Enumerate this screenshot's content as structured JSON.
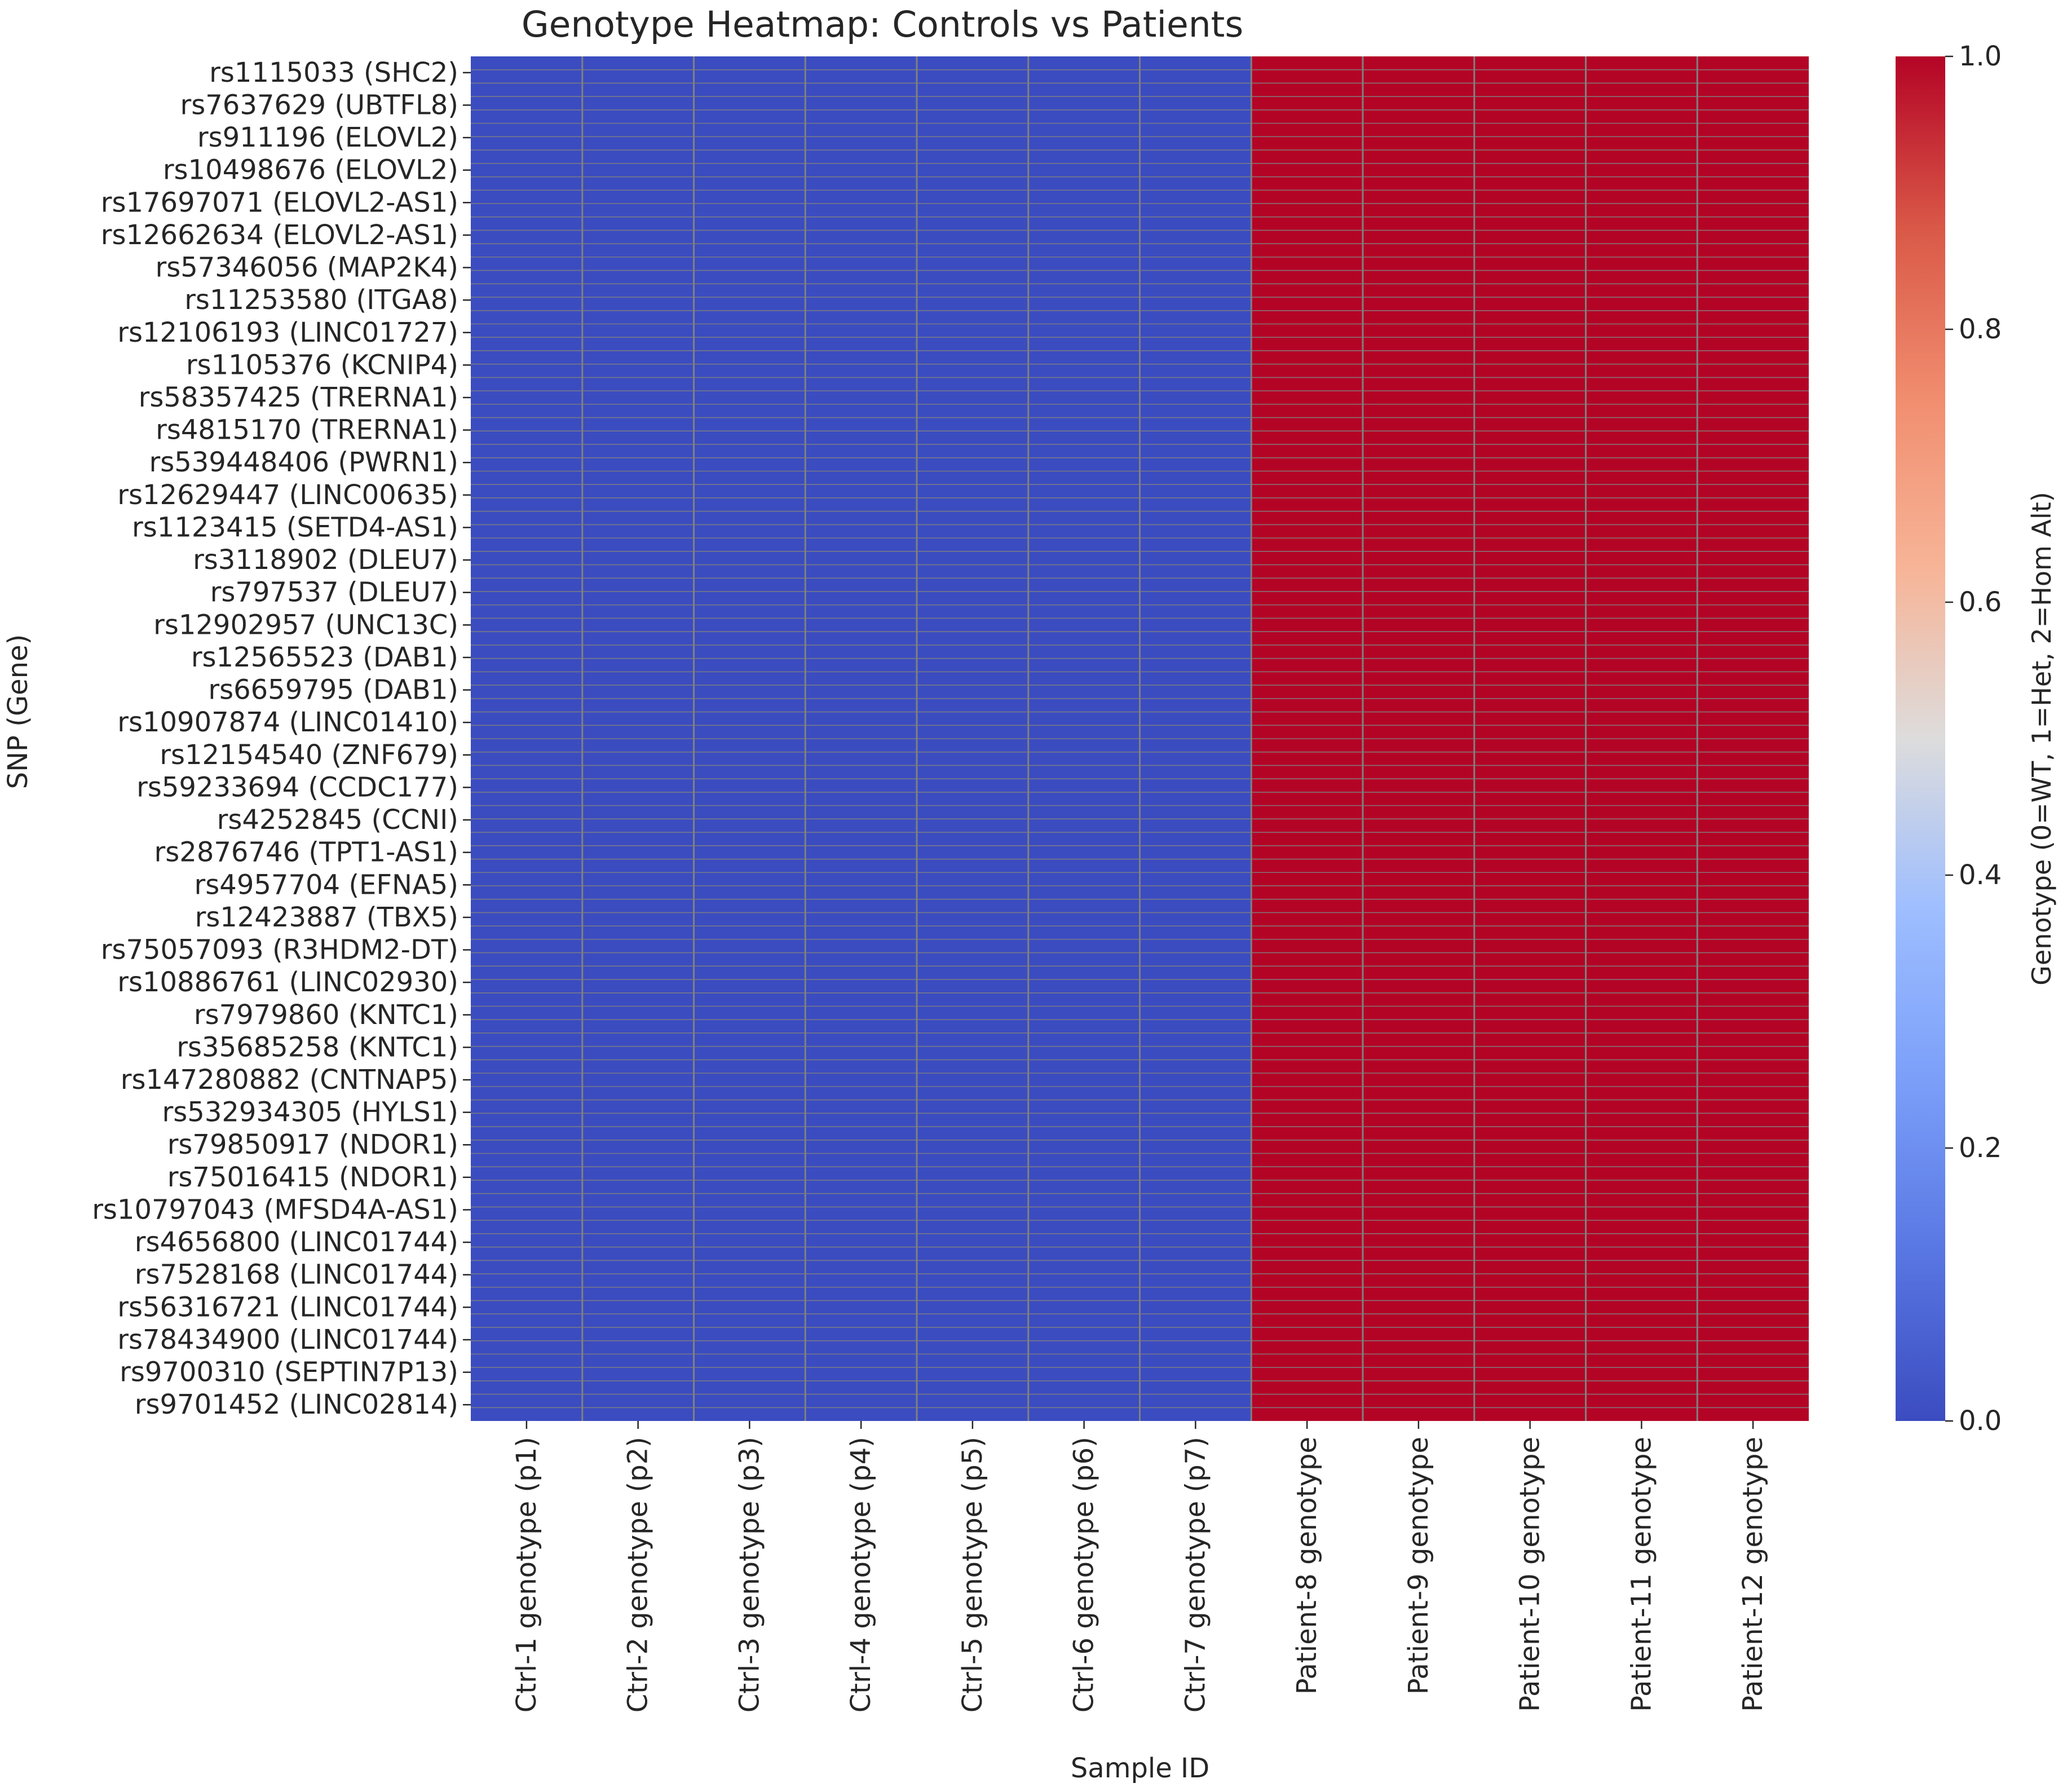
{
  "chart_data": {
    "type": "heatmap",
    "title": "Genotype Heatmap: Controls vs Patients",
    "xlabel": "Sample ID",
    "ylabel": "SNP (Gene)",
    "columns": [
      "Ctrl-1 genotype (p1)",
      "Ctrl-2 genotype (p2)",
      "Ctrl-3 genotype (p3)",
      "Ctrl-4 genotype (p4)",
      "Ctrl-5 genotype (p5)",
      "Ctrl-6 genotype (p6)",
      "Ctrl-7 genotype (p7)",
      "Patient-8 genotype",
      "Patient-9 genotype",
      "Patient-10 genotype",
      "Patient-11 genotype",
      "Patient-12 genotype"
    ],
    "row_labels": [
      "rs1115033 (SHC2)",
      "rs7637629 (UBTFL8)",
      "rs911196 (ELOVL2)",
      "rs10498676 (ELOVL2)",
      "rs17697071 (ELOVL2-AS1)",
      "rs12662634 (ELOVL2-AS1)",
      "rs57346056 (MAP2K4)",
      "rs11253580 (ITGA8)",
      "rs12106193 (LINC01727)",
      "rs1105376 (KCNIP4)",
      "rs58357425 (TRERNA1)",
      "rs4815170 (TRERNA1)",
      "rs539448406 (PWRN1)",
      "rs12629447 (LINC00635)",
      "rs1123415 (SETD4-AS1)",
      "rs3118902 (DLEU7)",
      "rs797537 (DLEU7)",
      "rs12902957 (UNC13C)",
      "rs12565523 (DAB1)",
      "rs6659795 (DAB1)",
      "rs10907874 (LINC01410)",
      "rs12154540 (ZNF679)",
      "rs59233694 (CCDC177)",
      "rs4252845 (CCNI)",
      "rs2876746 (TPT1-AS1)",
      "rs4957704 (EFNA5)",
      "rs12423887 (TBX5)",
      "rs75057093 (R3HDM2-DT)",
      "rs10886761 (LINC02930)",
      "rs7979860 (KNTC1)",
      "rs35685258 (KNTC1)",
      "rs147280882 (CNTNAP5)",
      "rs532934305 (HYLS1)",
      "rs79850917 (NDOR1)",
      "rs75016415 (NDOR1)",
      "rs10797043 (MFSD4A-AS1)",
      "rs4656800 (LINC01744)",
      "rs7528168 (LINC01744)",
      "rs56316721 (LINC01744)",
      "rs78434900 (LINC01744)",
      "rs9700310 (SEPTIN7P13)",
      "rs9701452 (LINC02814)"
    ],
    "column_values": [
      0,
      0,
      0,
      0,
      0,
      0,
      0,
      1,
      1,
      1,
      1,
      1
    ],
    "vmin": 0,
    "vmax": 1,
    "colormap": "coolwarm",
    "colormap_stops": [
      "#3b4cc0",
      "#dddddd",
      "#b40426"
    ],
    "cell_line_color": "#808080",
    "colorbar": {
      "label": "Genotype (0=WT, 1=Het, 2=Hom Alt)",
      "ticks": [
        0.0,
        0.2,
        0.4,
        0.6,
        0.8,
        1.0
      ],
      "tick_labels": [
        "0.0",
        "0.2",
        "0.4",
        "0.6",
        "0.8",
        "1.0"
      ]
    }
  }
}
